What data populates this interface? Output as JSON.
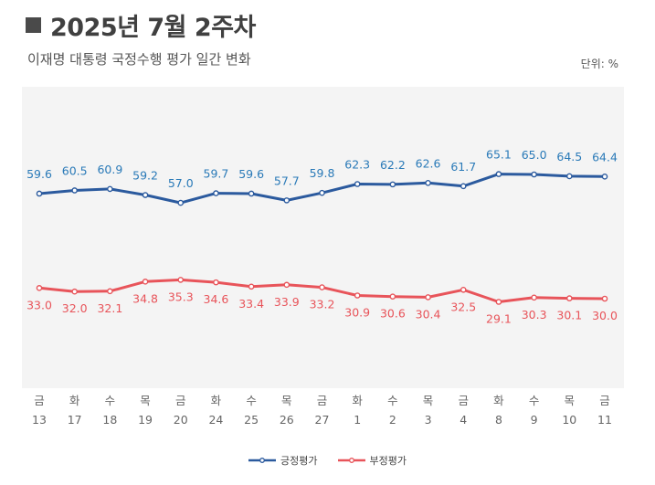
{
  "header": {
    "title": "2025년 7월 2주차",
    "subtitle": "이재명 대통령 국정수행 평가 일간 변화",
    "unit": "단위: %"
  },
  "chart_data": {
    "type": "line",
    "x_weekday": [
      "금",
      "화",
      "수",
      "목",
      "금",
      "화",
      "수",
      "목",
      "금",
      "화",
      "수",
      "목",
      "금",
      "화",
      "수",
      "목",
      "금"
    ],
    "x_day": [
      "13",
      "17",
      "18",
      "19",
      "20",
      "24",
      "25",
      "26",
      "27",
      "1",
      "2",
      "3",
      "4",
      "8",
      "9",
      "10",
      "11"
    ],
    "series": [
      {
        "name": "긍정평가",
        "color": "#2b5a9e",
        "label_color": "#2a7ab8",
        "values": [
          59.6,
          60.5,
          60.9,
          59.2,
          57.0,
          59.7,
          59.6,
          57.7,
          59.8,
          62.3,
          62.2,
          62.6,
          61.7,
          65.1,
          65.0,
          64.5,
          64.4
        ]
      },
      {
        "name": "부정평가",
        "color": "#e8545a",
        "label_color": "#e8545a",
        "values": [
          33.0,
          32.0,
          32.1,
          34.8,
          35.3,
          34.6,
          33.4,
          33.9,
          33.2,
          30.9,
          30.6,
          30.4,
          32.5,
          29.1,
          30.3,
          30.1,
          30.0
        ]
      }
    ],
    "background": "#f4f4f4",
    "legend_position": "bottom-center"
  }
}
